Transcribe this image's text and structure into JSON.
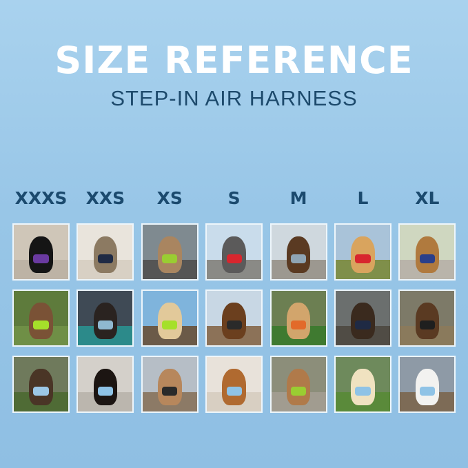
{
  "title": "SIZE REFERENCE",
  "subtitle": "STEP-IN AIR HARNESS",
  "sizes": [
    "XXXS",
    "XXS",
    "XS",
    "S",
    "M",
    "L",
    "XL"
  ],
  "photos": [
    [
      {
        "bg": "#cfc6b8",
        "ground": "#bdb3a5",
        "pet": "#151515",
        "harness": "#6a3aa0"
      },
      {
        "bg": "#e9e4dc",
        "ground": "#d8d0c4",
        "pet": "#8c7a62",
        "harness": "#1f2a44"
      },
      {
        "bg": "#7f8a90",
        "ground": "#555",
        "pet": "#a98560",
        "harness": "#9acd32"
      },
      {
        "bg": "#c9dceb",
        "ground": "#8a8a86",
        "pet": "#5b5a5a",
        "harness": "#d8262e"
      },
      {
        "bg": "#cfd8de",
        "ground": "#9c9890",
        "pet": "#5a3a22",
        "harness": "#8fa5b5"
      },
      {
        "bg": "#a9c3d9",
        "ground": "#7f8f4a",
        "pet": "#d9a45e",
        "harness": "#d8262e"
      },
      {
        "bg": "#cfd7c0",
        "ground": "#b9b4aa",
        "pet": "#b07a3e",
        "harness": "#2a3f8a"
      }
    ],
    [
      {
        "bg": "#5e7b3c",
        "ground": "#6f8f46",
        "pet": "#7a5236",
        "harness": "#a5e02a"
      },
      {
        "bg": "#3f4a55",
        "ground": "#2c8a8a",
        "pet": "#2a2320",
        "harness": "#8fb8d0"
      },
      {
        "bg": "#7fb4dc",
        "ground": "#6b5a48",
        "pet": "#e2c99a",
        "harness": "#a5e02a"
      },
      {
        "bg": "#c8d7e4",
        "ground": "#8c7258",
        "pet": "#6b3f1e",
        "harness": "#2a2a2a"
      },
      {
        "bg": "#6c7f52",
        "ground": "#3f7a30",
        "pet": "#d2a56c",
        "harness": "#e26a2a"
      },
      {
        "bg": "#6b6f6e",
        "ground": "#504c45",
        "pet": "#3a2a1e",
        "harness": "#1f2a44"
      },
      {
        "bg": "#7d7a68",
        "ground": "#8a7a5c",
        "pet": "#5a3a22",
        "harness": "#1f1f1f"
      }
    ],
    [
      {
        "bg": "#6f7a5c",
        "ground": "#4f6b35",
        "pet": "#4a3526",
        "harness": "#9cc7e6"
      },
      {
        "bg": "#d4d0ca",
        "ground": "#bbb6ae",
        "pet": "#1c1512",
        "harness": "#8fc3e6"
      },
      {
        "bg": "#b6bec6",
        "ground": "#8c7a66",
        "pet": "#b7875c",
        "harness": "#2a2a2a"
      },
      {
        "bg": "#e8e2da",
        "ground": "#d8cfc2",
        "pet": "#b06a30",
        "harness": "#8fc3e6"
      },
      {
        "bg": "#8c8e7a",
        "ground": "#a19c90",
        "pet": "#b07a4a",
        "harness": "#9acd32"
      },
      {
        "bg": "#6e8a5c",
        "ground": "#5a8a3a",
        "pet": "#f0e2c0",
        "harness": "#8fc3e6"
      },
      {
        "bg": "#8e9aa6",
        "ground": "#7d6b56",
        "pet": "#f2f2f0",
        "harness": "#8fc3e6"
      }
    ]
  ]
}
